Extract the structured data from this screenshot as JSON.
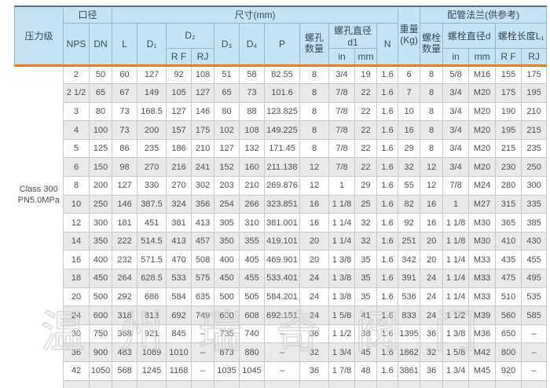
{
  "header": {
    "pressure_class": "压力级",
    "caliber": "口径",
    "dimensions_mm": "尺寸(mm)",
    "weight_kg": "重量\n(Kg)",
    "piping_flange_ref": "配管法兰(供参考)",
    "nps": "NPS",
    "dn": "DN",
    "l": "L",
    "d1": "D₁",
    "d2": "D₂",
    "d3": "D₃",
    "d4": "D₄",
    "p": "P",
    "rf": "R F",
    "rj": "RJ",
    "bolt_hole_qty": "螺孔\n数量",
    "bolt_hole_dia": "螺孔直径d1",
    "in": "in",
    "mm": "mm",
    "n": "N",
    "bolt_qty": "螺栓\n数量",
    "bolt_dia": "螺栓直径d",
    "bolt_len": "螺栓长度L₁"
  },
  "pressure_class_value": "Class 300\nPN5.0MPa",
  "watermark": "温州瑞奇阀门",
  "colors": {
    "header_bg": "#c6e3f4",
    "header_border": "#92b7d2",
    "accent_top_line": "#5c6a92",
    "accent_orange_line": "#e97c1e",
    "stripe_row": "#e9e9e9",
    "body_border": "#cacaca"
  },
  "rows": [
    [
      "2",
      "50",
      "60",
      "127",
      "92",
      "108",
      "51",
      "58",
      "82.55",
      "8",
      "3/4",
      "19",
      "1.6",
      "6",
      "8",
      "5/8",
      "M16",
      "155",
      "175"
    ],
    [
      "2 1/2",
      "65",
      "67",
      "149",
      "105",
      "127",
      "65",
      "73",
      "101.6",
      "8",
      "7/8",
      "22",
      "1.6",
      "7",
      "8",
      "3/4",
      "M20",
      "175",
      "195"
    ],
    [
      "3",
      "80",
      "73",
      "168.5",
      "127",
      "146",
      "80",
      "88",
      "123.825",
      "8",
      "7/8",
      "22",
      "1.6",
      "10",
      "8",
      "3/4",
      "M20",
      "190",
      "210"
    ],
    [
      "4",
      "100",
      "73",
      "200",
      "157",
      "175",
      "102",
      "108",
      "149.225",
      "8",
      "7/8",
      "22",
      "1.6",
      "16",
      "8",
      "3/4",
      "M20",
      "195",
      "215"
    ],
    [
      "5",
      "125",
      "86",
      "235",
      "186",
      "210",
      "127",
      "132",
      "171.45",
      "8",
      "7/8",
      "22",
      "1.6",
      "29",
      "8",
      "3/4",
      "M20",
      "215",
      "235"
    ],
    [
      "6",
      "150",
      "98",
      "270",
      "216",
      "241",
      "152",
      "160",
      "211.138",
      "12",
      "7/8",
      "22",
      "1.6",
      "32",
      "12",
      "3/4",
      "M20",
      "230",
      "250"
    ],
    [
      "8",
      "200",
      "127",
      "330",
      "270",
      "302",
      "203",
      "210",
      "269.876",
      "12",
      "1",
      "29",
      "1.6",
      "55",
      "12",
      "7/8",
      "M24",
      "280",
      "300"
    ],
    [
      "10",
      "250",
      "146",
      "387.5",
      "324",
      "356",
      "254",
      "266",
      "323.851",
      "16",
      "1 1/8",
      "25",
      "1.6",
      "82",
      "16",
      "1",
      "M27",
      "315",
      "335"
    ],
    [
      "12",
      "300",
      "181",
      "451",
      "381",
      "413",
      "305",
      "310",
      "381.001",
      "16",
      "1 1/4",
      "32",
      "1.6",
      "92",
      "16",
      "1 1/8",
      "M30",
      "365",
      "385"
    ],
    [
      "14",
      "350",
      "222",
      "514.5",
      "413",
      "457",
      "350",
      "355",
      "419.101",
      "20",
      "1 1/4",
      "32",
      "1.6",
      "251",
      "20",
      "1 1/8",
      "M30",
      "410",
      "430"
    ],
    [
      "16",
      "400",
      "232",
      "571.5",
      "470",
      "508",
      "400",
      "405",
      "469.901",
      "20",
      "1 3/8",
      "35",
      "1.6",
      "342",
      "20",
      "1 1/4",
      "M33",
      "435",
      "455"
    ],
    [
      "18",
      "450",
      "264",
      "628.5",
      "533",
      "575",
      "450",
      "455",
      "533.401",
      "24",
      "1 3/8",
      "35",
      "1.6",
      "391",
      "24",
      "1 1/4",
      "M33",
      "475",
      "495"
    ],
    [
      "20",
      "500",
      "292",
      "686",
      "584",
      "635",
      "500",
      "505",
      "584.201",
      "24",
      "1 3/8",
      "35",
      "1.6",
      "536",
      "24",
      "1 1/4",
      "M33",
      "510",
      "535"
    ],
    [
      "24",
      "600",
      "318",
      "813",
      "692",
      "749",
      "600",
      "608",
      "692.151",
      "24",
      "1 5/8",
      "41",
      "1.6",
      "833",
      "24",
      "1 1/2",
      "M39",
      "560",
      "585"
    ],
    [
      "30",
      "750",
      "368",
      "921",
      "845",
      "–",
      "735",
      "740",
      "–",
      "36",
      "1 1/2",
      "38",
      "1.6",
      "1395",
      "36",
      "1 3/8",
      "M36",
      "650",
      "–"
    ],
    [
      "36",
      "900",
      "483",
      "1089",
      "1010",
      "–",
      "873",
      "880",
      "–",
      "32",
      "1 3/4",
      "45",
      "1.6",
      "1862",
      "32",
      "1 5/8",
      "M42",
      "800",
      "–"
    ],
    [
      "42",
      "1050",
      "568",
      "1245",
      "1168",
      "–",
      "1035",
      "1045",
      "–",
      "36",
      "1 7/8",
      "48",
      "1.6",
      "3861",
      "36",
      "1 3/4",
      "M45",
      "920",
      "–"
    ]
  ]
}
